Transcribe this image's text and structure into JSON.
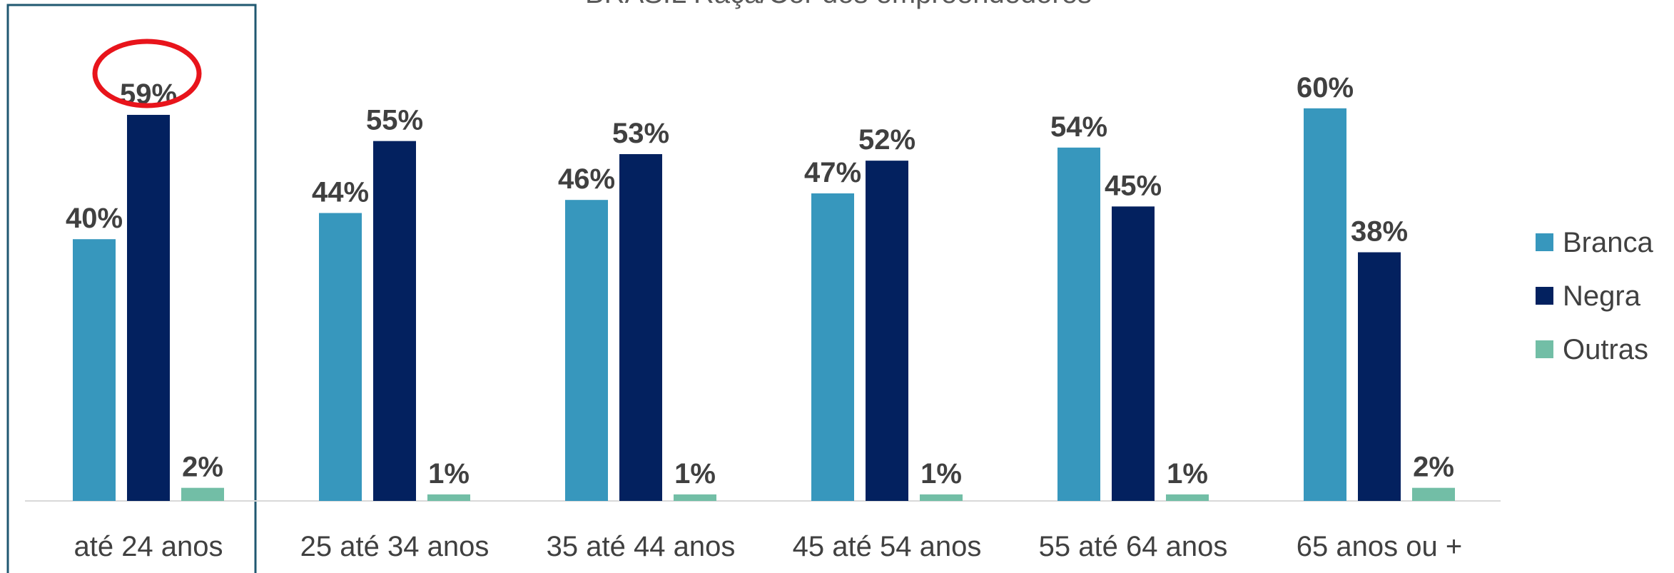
{
  "chart_data": {
    "type": "bar",
    "title": "BRASIL Raça/Cor dos empreendedores",
    "categories": [
      "até 24 anos",
      "25 até 34 anos",
      "35 até 44 anos",
      "45 até 54 anos",
      "55 até 64 anos",
      "65 anos ou +"
    ],
    "series": [
      {
        "name": "Branca",
        "color": "#3797BD",
        "values": [
          40,
          44,
          46,
          47,
          54,
          60
        ],
        "labels": [
          "40%",
          "44%",
          "46%",
          "47%",
          "54%",
          "60%"
        ]
      },
      {
        "name": "Negra",
        "color": "#03215F",
        "values": [
          59,
          55,
          53,
          52,
          45,
          38
        ],
        "labels": [
          "59%",
          "55%",
          "53%",
          "52%",
          "45%",
          "38%"
        ]
      },
      {
        "name": "Outras",
        "color": "#72BEA6",
        "values": [
          2,
          1,
          1,
          1,
          1,
          2
        ],
        "labels": [
          "2%",
          "1%",
          "1%",
          "1%",
          "1%",
          "2%"
        ]
      }
    ],
    "ylim": [
      0,
      62
    ],
    "legend": "right",
    "grid": false,
    "highlight": {
      "category_index": 0,
      "box_color": "#205871",
      "circle_series_index": 1,
      "circle_color": "#E8141B"
    }
  }
}
